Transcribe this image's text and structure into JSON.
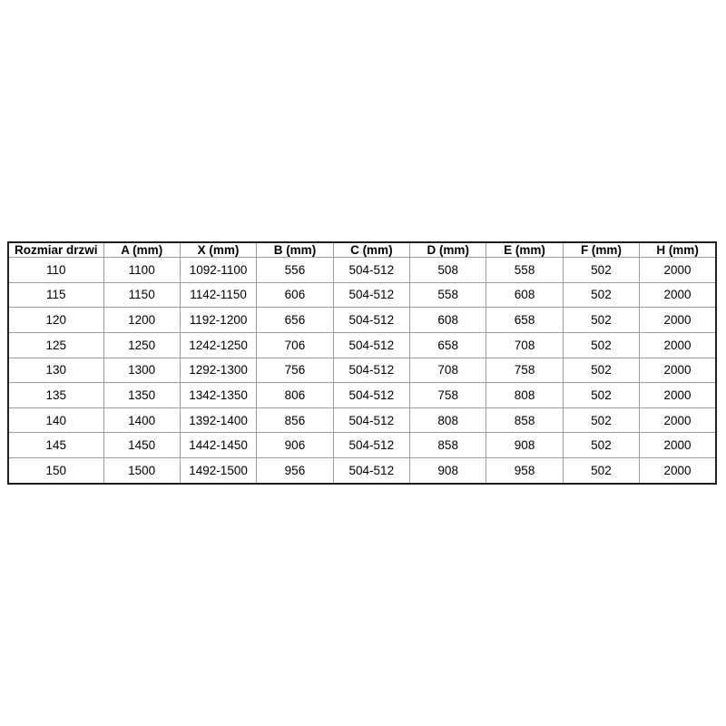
{
  "colors": {
    "outer_border": "#1f1f1f",
    "grid_line": "#9c9c9c",
    "text": "#000000",
    "background": "#ffffff"
  },
  "chart_data": {
    "type": "table",
    "title": "",
    "columns": [
      "Rozmiar drzwi",
      "A (mm)",
      "X (mm)",
      "B (mm)",
      "C (mm)",
      "D (mm)",
      "E (mm)",
      "F (mm)",
      "H (mm)"
    ],
    "rows": [
      [
        "110",
        "1100",
        "1092-1100",
        "556",
        "504-512",
        "508",
        "558",
        "502",
        "2000"
      ],
      [
        "115",
        "1150",
        "1142-1150",
        "606",
        "504-512",
        "558",
        "608",
        "502",
        "2000"
      ],
      [
        "120",
        "1200",
        "1192-1200",
        "656",
        "504-512",
        "608",
        "658",
        "502",
        "2000"
      ],
      [
        "125",
        "1250",
        "1242-1250",
        "706",
        "504-512",
        "658",
        "708",
        "502",
        "2000"
      ],
      [
        "130",
        "1300",
        "1292-1300",
        "756",
        "504-512",
        "708",
        "758",
        "502",
        "2000"
      ],
      [
        "135",
        "1350",
        "1342-1350",
        "806",
        "504-512",
        "758",
        "808",
        "502",
        "2000"
      ],
      [
        "140",
        "1400",
        "1392-1400",
        "856",
        "504-512",
        "808",
        "858",
        "502",
        "2000"
      ],
      [
        "145",
        "1450",
        "1442-1450",
        "906",
        "504-512",
        "858",
        "908",
        "502",
        "2000"
      ],
      [
        "150",
        "1500",
        "1492-1500",
        "956",
        "504-512",
        "908",
        "958",
        "502",
        "2000"
      ]
    ],
    "layout": {
      "grid": true,
      "header_bold": true,
      "cell_alignment": "center"
    }
  }
}
